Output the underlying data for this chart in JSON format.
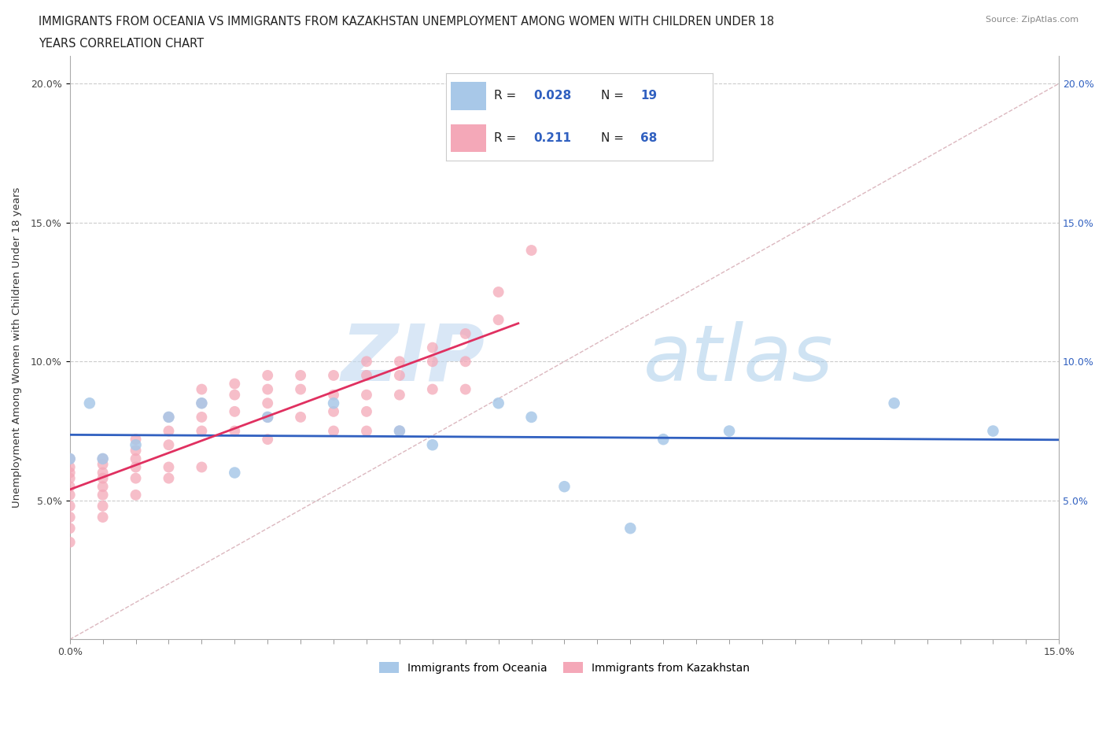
{
  "title_line1": "IMMIGRANTS FROM OCEANIA VS IMMIGRANTS FROM KAZAKHSTAN UNEMPLOYMENT AMONG WOMEN WITH CHILDREN UNDER 18",
  "title_line2": "YEARS CORRELATION CHART",
  "source": "Source: ZipAtlas.com",
  "ylabel": "Unemployment Among Women with Children Under 18 years",
  "xlim": [
    0.0,
    0.15
  ],
  "ylim": [
    0.0,
    0.21
  ],
  "yticks": [
    0.05,
    0.1,
    0.15,
    0.2
  ],
  "ytick_labels": [
    "5.0%",
    "10.0%",
    "15.0%",
    "20.0%"
  ],
  "oceania_color": "#a8c8e8",
  "kazakhstan_color": "#f4a8b8",
  "watermark_zip": "ZIP",
  "watermark_atlas": "atlas",
  "diagonal_color": "#d8b0b8",
  "oceania_trend_color": "#3060c0",
  "kazakhstan_trend_color": "#e03060",
  "oceania_R": "0.028",
  "oceania_N": "19",
  "kazakhstan_R": "0.211",
  "kazakhstan_N": "68",
  "oceania_x": [
    0.0,
    0.003,
    0.005,
    0.01,
    0.015,
    0.02,
    0.025,
    0.03,
    0.04,
    0.05,
    0.055,
    0.065,
    0.07,
    0.075,
    0.085,
    0.09,
    0.1,
    0.125,
    0.14
  ],
  "oceania_y": [
    0.065,
    0.085,
    0.065,
    0.07,
    0.08,
    0.085,
    0.06,
    0.08,
    0.085,
    0.075,
    0.07,
    0.085,
    0.08,
    0.055,
    0.04,
    0.072,
    0.075,
    0.085,
    0.075
  ],
  "kazakhstan_x": [
    0.0,
    0.0,
    0.0,
    0.0,
    0.0,
    0.0,
    0.0,
    0.0,
    0.0,
    0.0,
    0.005,
    0.005,
    0.005,
    0.005,
    0.005,
    0.005,
    0.005,
    0.005,
    0.01,
    0.01,
    0.01,
    0.01,
    0.01,
    0.01,
    0.015,
    0.015,
    0.015,
    0.015,
    0.015,
    0.02,
    0.02,
    0.02,
    0.02,
    0.02,
    0.025,
    0.025,
    0.025,
    0.025,
    0.03,
    0.03,
    0.03,
    0.03,
    0.03,
    0.035,
    0.035,
    0.035,
    0.04,
    0.04,
    0.04,
    0.04,
    0.045,
    0.045,
    0.045,
    0.045,
    0.045,
    0.05,
    0.05,
    0.05,
    0.05,
    0.055,
    0.055,
    0.055,
    0.06,
    0.06,
    0.06,
    0.065,
    0.065,
    0.07
  ],
  "kazakhstan_y": [
    0.065,
    0.062,
    0.06,
    0.058,
    0.055,
    0.052,
    0.048,
    0.044,
    0.04,
    0.035,
    0.065,
    0.063,
    0.06,
    0.058,
    0.055,
    0.052,
    0.048,
    0.044,
    0.072,
    0.068,
    0.065,
    0.062,
    0.058,
    0.052,
    0.08,
    0.075,
    0.07,
    0.062,
    0.058,
    0.09,
    0.085,
    0.08,
    0.075,
    0.062,
    0.092,
    0.088,
    0.082,
    0.075,
    0.095,
    0.09,
    0.085,
    0.08,
    0.072,
    0.095,
    0.09,
    0.08,
    0.095,
    0.088,
    0.082,
    0.075,
    0.1,
    0.095,
    0.088,
    0.082,
    0.075,
    0.1,
    0.095,
    0.088,
    0.075,
    0.105,
    0.1,
    0.09,
    0.11,
    0.1,
    0.09,
    0.125,
    0.115,
    0.14
  ]
}
